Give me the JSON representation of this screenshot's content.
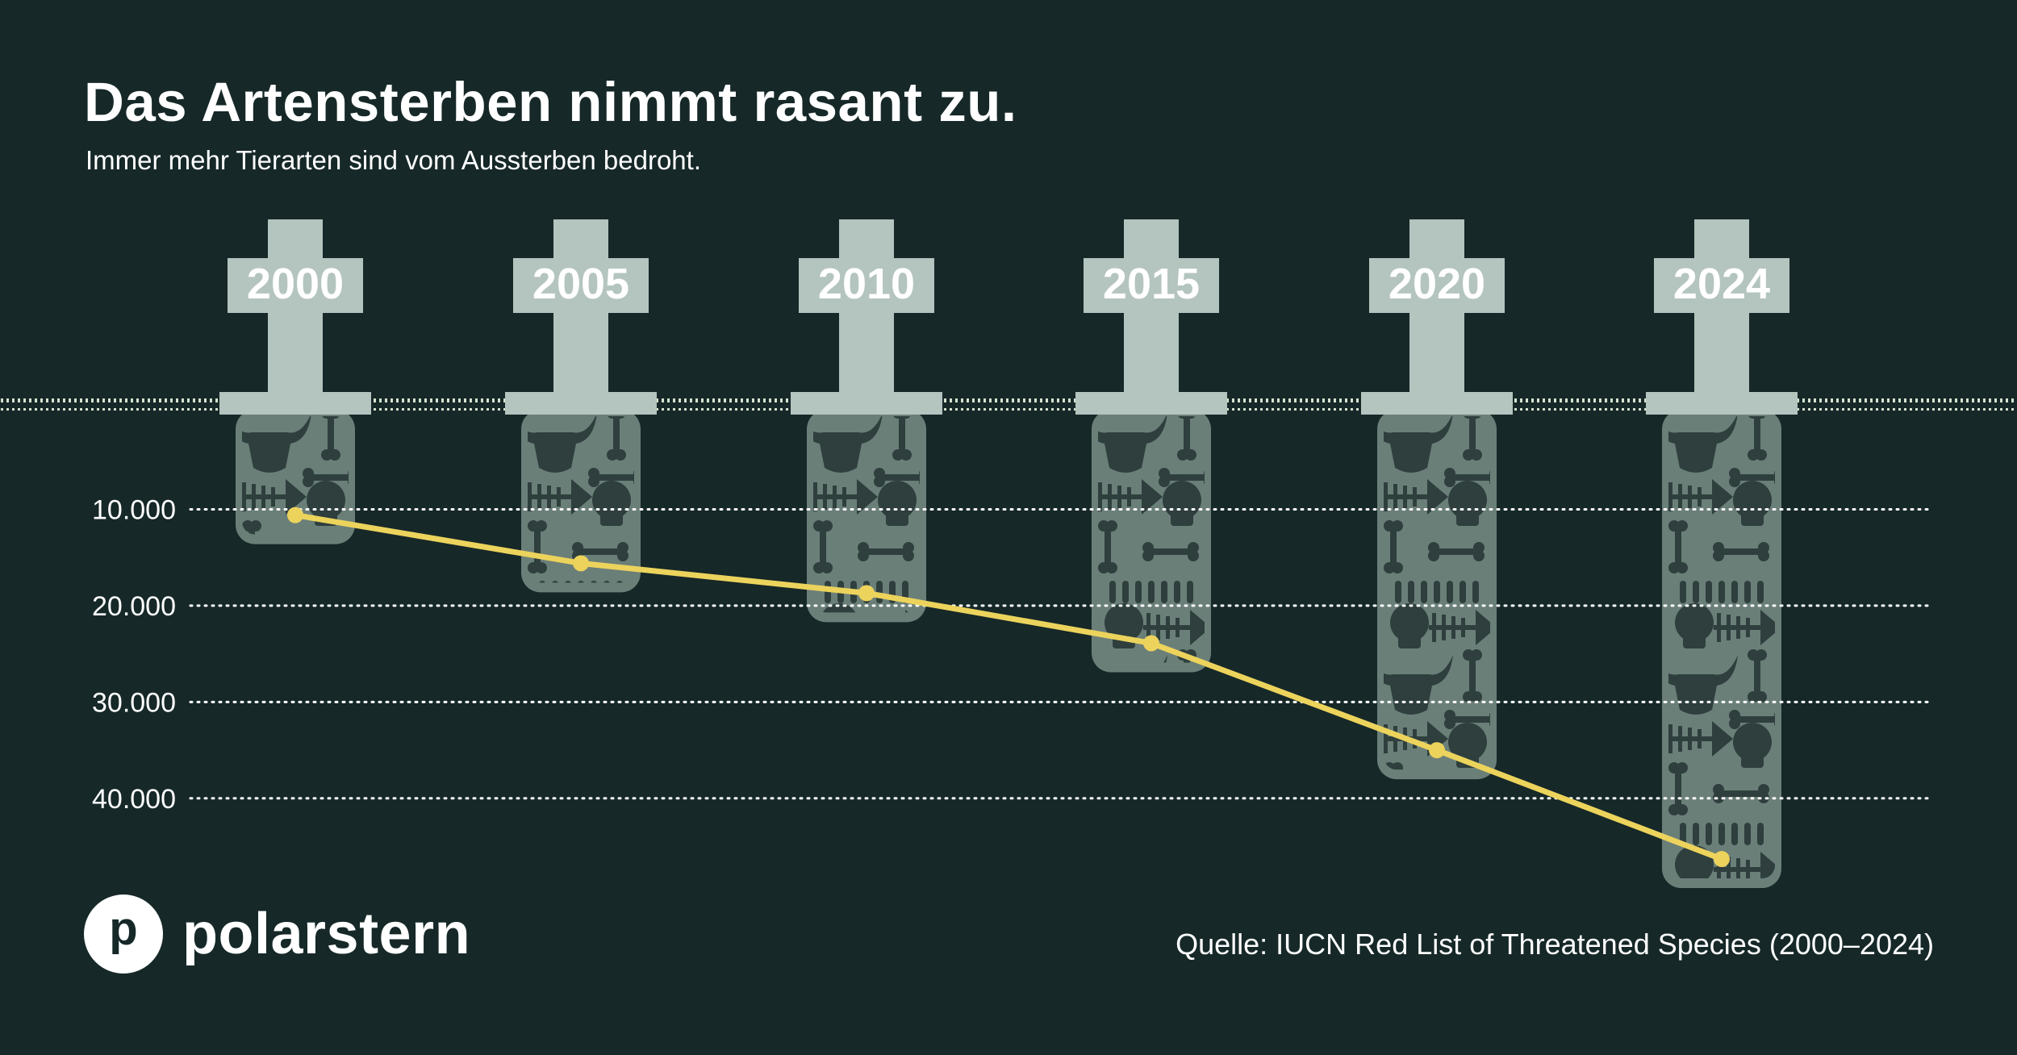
{
  "title": "Das Artensterben nimmt rasant zu.",
  "subtitle": "Immer mehr Tierarten sind vom Aussterben bedroht.",
  "source": "Quelle: IUCN Red List of Threatened Species (2000–2024)",
  "logo": {
    "badge_letter": "p",
    "wordmark": "polarstern"
  },
  "colors": {
    "background": "#162828",
    "tombstone": "#b4c4be",
    "grave": "#6b7f79",
    "grave_icons": "#2e3f3d",
    "line": "#ecd35c",
    "grass": "#d7e2cf",
    "gridline": "#ffffff"
  },
  "icons": [
    "cow-skull-icon",
    "fish-skeleton-icon",
    "bone-icon",
    "skull-icon",
    "bone-chain-icon"
  ],
  "chart_data": {
    "type": "line",
    "title": "Das Artensterben nimmt rasant zu.",
    "subtitle": "Immer mehr Tierarten sind vom Aussterben bedroht.",
    "categories": [
      "2000",
      "2005",
      "2010",
      "2015",
      "2020",
      "2024"
    ],
    "values": [
      10600,
      15600,
      18700,
      23900,
      35000,
      46300
    ],
    "y_axis": {
      "inverted": true,
      "range": [
        0,
        46300
      ],
      "ticks": [
        10000,
        20000,
        30000,
        40000
      ],
      "tick_labels": [
        "10.000",
        "20.000",
        "30.000",
        "40.000"
      ]
    },
    "grid": "horizontal dotted",
    "legend": "none"
  }
}
